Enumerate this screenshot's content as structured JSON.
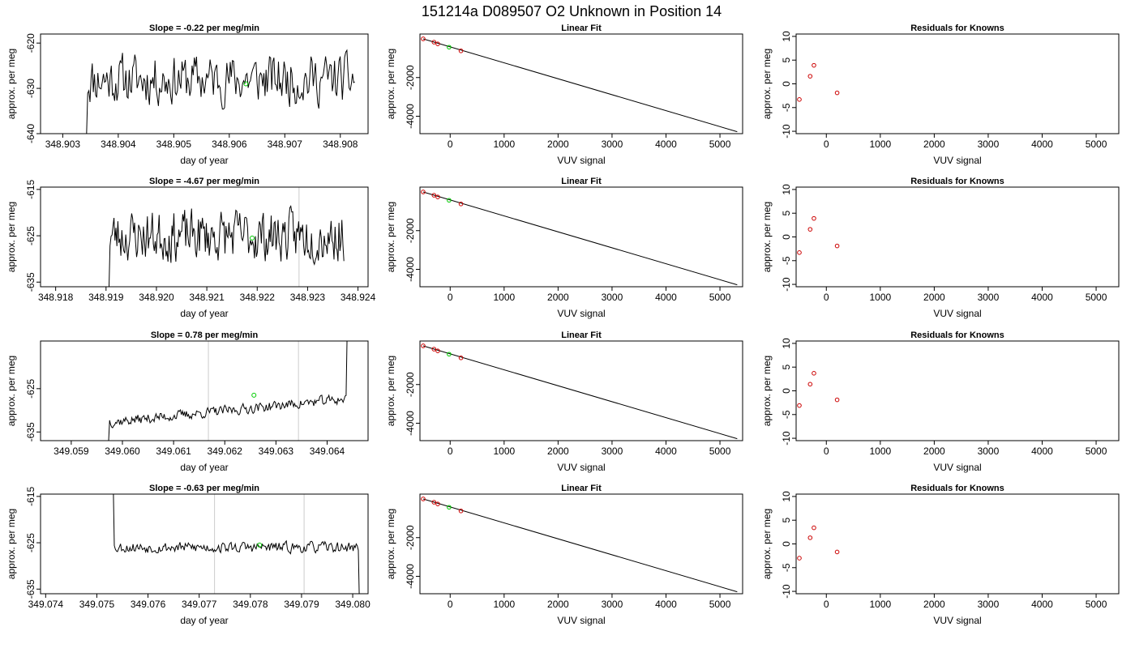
{
  "figure": {
    "title": "151214a      D089507   O2 Unknown in Position  14"
  },
  "chart_data": [
    {
      "row": 1,
      "panel": "time-series",
      "type": "line",
      "title": "Slope =  -0.22  per meg/min",
      "xlabel": "day of year",
      "ylabel": "approx. per meg",
      "xlim": [
        348.9026,
        348.9085
      ],
      "ylim": [
        -640,
        -618
      ],
      "xticks": [
        "348.903",
        "348.904",
        "348.905",
        "348.906",
        "348.907",
        "348.908"
      ],
      "xtick_values": [
        348.903,
        348.904,
        348.905,
        348.906,
        348.907,
        348.908
      ],
      "yticks": [
        "-640",
        "-630",
        "-620"
      ],
      "ytick_values": [
        -640,
        -630,
        -620
      ],
      "series": [
        {
          "x_start": 348.90343,
          "x_end": 348.90826,
          "y_min": -640,
          "y_max": -618,
          "y_mean": -628,
          "noise": 7.5,
          "trend": 0,
          "seed": 11
        }
      ],
      "marker": {
        "x": 348.9063,
        "y": -629,
        "color": "#00cc00"
      },
      "vlines": [],
      "colors": {
        "line": "#000000",
        "marker": "#00cc00"
      }
    },
    {
      "row": 1,
      "panel": "linear-fit",
      "type": "scatter",
      "title": "Linear Fit",
      "xlabel": "VUV signal",
      "ylabel": "approx. per meg",
      "xlim": [
        -560,
        5420
      ],
      "ylim": [
        -4900,
        250
      ],
      "xticks": [
        "0",
        "1000",
        "2000",
        "3000",
        "4000",
        "5000"
      ],
      "xtick_values": [
        0,
        1000,
        2000,
        3000,
        4000,
        5000
      ],
      "yticks": [
        "-4000",
        "-2000"
      ],
      "ytick_values": [
        -4000,
        -2000
      ],
      "knowns": [
        {
          "x": -500,
          "y": 0
        },
        {
          "x": -300,
          "y": -170
        },
        {
          "x": -230,
          "y": -260
        },
        {
          "x": 200,
          "y": -620
        }
      ],
      "unknown": {
        "x": -20,
        "y": -430
      },
      "fit_line": [
        [
          -500,
          0
        ],
        [
          5320,
          -4800
        ]
      ],
      "colors": {
        "known": "#cc0000",
        "unknown": "#00cc00",
        "line": "#000000"
      }
    },
    {
      "row": 1,
      "panel": "residuals",
      "type": "scatter",
      "title": "Residuals for Knowns",
      "xlabel": "VUV signal",
      "ylabel": "approx. per meg",
      "xlim": [
        -560,
        5420
      ],
      "ylim": [
        -10.5,
        10.5
      ],
      "xticks": [
        "0",
        "1000",
        "2000",
        "3000",
        "4000",
        "5000"
      ],
      "xtick_values": [
        0,
        1000,
        2000,
        3000,
        4000,
        5000
      ],
      "yticks": [
        "-10",
        "-5",
        "0",
        "5",
        "10"
      ],
      "ytick_values": [
        -10,
        -5,
        0,
        5,
        10
      ],
      "points": [
        {
          "x": -500,
          "y": -3.3
        },
        {
          "x": -300,
          "y": 1.6
        },
        {
          "x": -230,
          "y": 3.9
        },
        {
          "x": 200,
          "y": -1.9
        }
      ],
      "colors": {
        "point": "#cc0000"
      }
    },
    {
      "row": 2,
      "panel": "time-series",
      "type": "line",
      "title": "Slope =  -4.67  per meg/min",
      "xlabel": "day of year",
      "ylabel": "approx. per meg",
      "xlim": [
        348.9177,
        348.9242
      ],
      "ylim": [
        -636,
        -614.5
      ],
      "xticks": [
        "348.918",
        "348.919",
        "348.920",
        "348.921",
        "348.922",
        "348.923",
        "348.924"
      ],
      "xtick_values": [
        348.918,
        348.919,
        348.92,
        348.921,
        348.922,
        348.923,
        348.924
      ],
      "yticks": [
        "-635",
        "-625",
        "-615"
      ],
      "ytick_values": [
        -635,
        -625,
        -615
      ],
      "series": [
        {
          "x_start": 348.91906,
          "x_end": 348.92372,
          "y_min": -636,
          "y_max": -614.5,
          "y_mean": -625,
          "noise": 7.5,
          "trend": 0,
          "seed": 23
        }
      ],
      "marker": {
        "x": 348.9219,
        "y": -625.5,
        "color": "#00cc00"
      },
      "vlines": [
        348.92283
      ],
      "colors": {
        "line": "#000000",
        "marker": "#00cc00",
        "vline": "#cccccc"
      }
    },
    {
      "row": 2,
      "panel": "linear-fit",
      "type": "scatter",
      "title": "Linear Fit",
      "xlabel": "VUV signal",
      "ylabel": "approx. per meg",
      "xlim": [
        -560,
        5420
      ],
      "ylim": [
        -4900,
        250
      ],
      "xticks": [
        "0",
        "1000",
        "2000",
        "3000",
        "4000",
        "5000"
      ],
      "xtick_values": [
        0,
        1000,
        2000,
        3000,
        4000,
        5000
      ],
      "yticks": [
        "-4000",
        "-2000"
      ],
      "ytick_values": [
        -4000,
        -2000
      ],
      "knowns": [
        {
          "x": -500,
          "y": 0
        },
        {
          "x": -300,
          "y": -170
        },
        {
          "x": -230,
          "y": -260
        },
        {
          "x": 200,
          "y": -620
        }
      ],
      "unknown": {
        "x": -20,
        "y": -430
      },
      "fit_line": [
        [
          -500,
          0
        ],
        [
          5320,
          -4800
        ]
      ],
      "colors": {
        "known": "#cc0000",
        "unknown": "#00cc00",
        "line": "#000000"
      }
    },
    {
      "row": 2,
      "panel": "residuals",
      "type": "scatter",
      "title": "Residuals for Knowns",
      "xlabel": "VUV signal",
      "ylabel": "approx. per meg",
      "xlim": [
        -560,
        5420
      ],
      "ylim": [
        -10.5,
        10.5
      ],
      "xticks": [
        "0",
        "1000",
        "2000",
        "3000",
        "4000",
        "5000"
      ],
      "xtick_values": [
        0,
        1000,
        2000,
        3000,
        4000,
        5000
      ],
      "yticks": [
        "-10",
        "-5",
        "0",
        "5",
        "10"
      ],
      "ytick_values": [
        -10,
        -5,
        0,
        5,
        10
      ],
      "points": [
        {
          "x": -500,
          "y": -3.3
        },
        {
          "x": -300,
          "y": 1.6
        },
        {
          "x": -230,
          "y": 3.9
        },
        {
          "x": 200,
          "y": -1.9
        }
      ],
      "colors": {
        "point": "#cc0000"
      }
    },
    {
      "row": 3,
      "panel": "time-series",
      "type": "line",
      "title": "Slope =  0.78  per meg/min",
      "xlabel": "day of year",
      "ylabel": "approx. per meg",
      "xlim": [
        349.0584,
        349.0648
      ],
      "ylim": [
        -637,
        -614
      ],
      "xticks": [
        "349.059",
        "349.060",
        "349.061",
        "349.062",
        "349.063",
        "349.064"
      ],
      "xtick_values": [
        349.059,
        349.06,
        349.061,
        349.062,
        349.063,
        349.064
      ],
      "yticks": [
        "-635",
        "-625"
      ],
      "ytick_values": [
        -635,
        -625
      ],
      "series": [
        {
          "x_start": 349.05973,
          "x_end": 349.06445,
          "y_min": -637,
          "y_max": -614,
          "y_mean": -630,
          "noise": 1.6,
          "trend": 5.5,
          "seed": 37
        }
      ],
      "marker": {
        "x": 349.06257,
        "y": -626.5,
        "color": "#00cc00"
      },
      "vlines": [
        349.06168,
        349.06344
      ],
      "colors": {
        "line": "#000000",
        "marker": "#00cc00",
        "vline": "#cccccc"
      }
    },
    {
      "row": 3,
      "panel": "linear-fit",
      "type": "scatter",
      "title": "Linear Fit",
      "xlabel": "VUV signal",
      "ylabel": "approx. per meg",
      "xlim": [
        -560,
        5420
      ],
      "ylim": [
        -4900,
        250
      ],
      "xticks": [
        "0",
        "1000",
        "2000",
        "3000",
        "4000",
        "5000"
      ],
      "xtick_values": [
        0,
        1000,
        2000,
        3000,
        4000,
        5000
      ],
      "yticks": [
        "-4000",
        "-2000"
      ],
      "ytick_values": [
        -4000,
        -2000
      ],
      "knowns": [
        {
          "x": -500,
          "y": 0
        },
        {
          "x": -300,
          "y": -170
        },
        {
          "x": -230,
          "y": -260
        },
        {
          "x": 200,
          "y": -620
        }
      ],
      "unknown": {
        "x": -20,
        "y": -430
      },
      "fit_line": [
        [
          -500,
          0
        ],
        [
          5320,
          -4800
        ]
      ],
      "colors": {
        "known": "#cc0000",
        "unknown": "#00cc00",
        "line": "#000000"
      }
    },
    {
      "row": 3,
      "panel": "residuals",
      "type": "scatter",
      "title": "Residuals for Knowns",
      "xlabel": "VUV signal",
      "ylabel": "approx. per meg",
      "xlim": [
        -560,
        5420
      ],
      "ylim": [
        -10.5,
        10.5
      ],
      "xticks": [
        "0",
        "1000",
        "2000",
        "3000",
        "4000",
        "5000"
      ],
      "xtick_values": [
        0,
        1000,
        2000,
        3000,
        4000,
        5000
      ],
      "yticks": [
        "-10",
        "-5",
        "0",
        "5",
        "10"
      ],
      "ytick_values": [
        -10,
        -5,
        0,
        5,
        10
      ],
      "points": [
        {
          "x": -500,
          "y": -3.1
        },
        {
          "x": -300,
          "y": 1.4
        },
        {
          "x": -230,
          "y": 3.7
        },
        {
          "x": 200,
          "y": -1.9
        }
      ],
      "colors": {
        "point": "#cc0000"
      }
    },
    {
      "row": 4,
      "panel": "time-series",
      "type": "line",
      "title": "Slope =  -0.63  per meg/min",
      "xlabel": "day of year",
      "ylabel": "approx. per meg",
      "xlim": [
        349.0739,
        349.0803
      ],
      "ylim": [
        -636,
        -614.5
      ],
      "xticks": [
        "349.074",
        "349.075",
        "349.076",
        "349.077",
        "349.078",
        "349.079",
        "349.080"
      ],
      "xtick_values": [
        349.074,
        349.075,
        349.076,
        349.077,
        349.078,
        349.079,
        349.08
      ],
      "yticks": [
        "-635",
        "-625",
        "-615"
      ],
      "ytick_values": [
        -635,
        -625,
        -615
      ],
      "series": [
        {
          "x_start": 349.07526,
          "x_end": 349.08013,
          "y_min": -636,
          "y_max": -614.5,
          "y_mean": -626,
          "noise": 1.6,
          "trend": 0,
          "seed": 53
        }
      ],
      "marker": {
        "x": 349.07818,
        "y": -625.5,
        "color": "#00cc00"
      },
      "vlines": [
        349.0773,
        349.07905
      ],
      "colors": {
        "line": "#000000",
        "marker": "#00cc00",
        "vline": "#cccccc"
      }
    },
    {
      "row": 4,
      "panel": "linear-fit",
      "type": "scatter",
      "title": "Linear Fit",
      "xlabel": "VUV signal",
      "ylabel": "approx. per meg",
      "xlim": [
        -560,
        5420
      ],
      "ylim": [
        -4900,
        250
      ],
      "xticks": [
        "0",
        "1000",
        "2000",
        "3000",
        "4000",
        "5000"
      ],
      "xtick_values": [
        0,
        1000,
        2000,
        3000,
        4000,
        5000
      ],
      "yticks": [
        "-4000",
        "-2000"
      ],
      "ytick_values": [
        -4000,
        -2000
      ],
      "knowns": [
        {
          "x": -500,
          "y": 0
        },
        {
          "x": -300,
          "y": -170
        },
        {
          "x": -230,
          "y": -260
        },
        {
          "x": 200,
          "y": -620
        }
      ],
      "unknown": {
        "x": -20,
        "y": -430
      },
      "fit_line": [
        [
          -500,
          0
        ],
        [
          5320,
          -4800
        ]
      ],
      "colors": {
        "known": "#cc0000",
        "unknown": "#00cc00",
        "line": "#000000"
      }
    },
    {
      "row": 4,
      "panel": "residuals",
      "type": "scatter",
      "title": "Residuals for Knowns",
      "xlabel": "VUV signal",
      "ylabel": "approx. per meg",
      "xlim": [
        -560,
        5420
      ],
      "ylim": [
        -10.5,
        10.5
      ],
      "xticks": [
        "0",
        "1000",
        "2000",
        "3000",
        "4000",
        "5000"
      ],
      "xtick_values": [
        0,
        1000,
        2000,
        3000,
        4000,
        5000
      ],
      "yticks": [
        "-10",
        "-5",
        "0",
        "5",
        "10"
      ],
      "ytick_values": [
        -10,
        -5,
        0,
        5,
        10
      ],
      "points": [
        {
          "x": -500,
          "y": -3.0
        },
        {
          "x": -300,
          "y": 1.3
        },
        {
          "x": -230,
          "y": 3.4
        },
        {
          "x": 200,
          "y": -1.7
        }
      ],
      "colors": {
        "point": "#cc0000"
      }
    }
  ]
}
